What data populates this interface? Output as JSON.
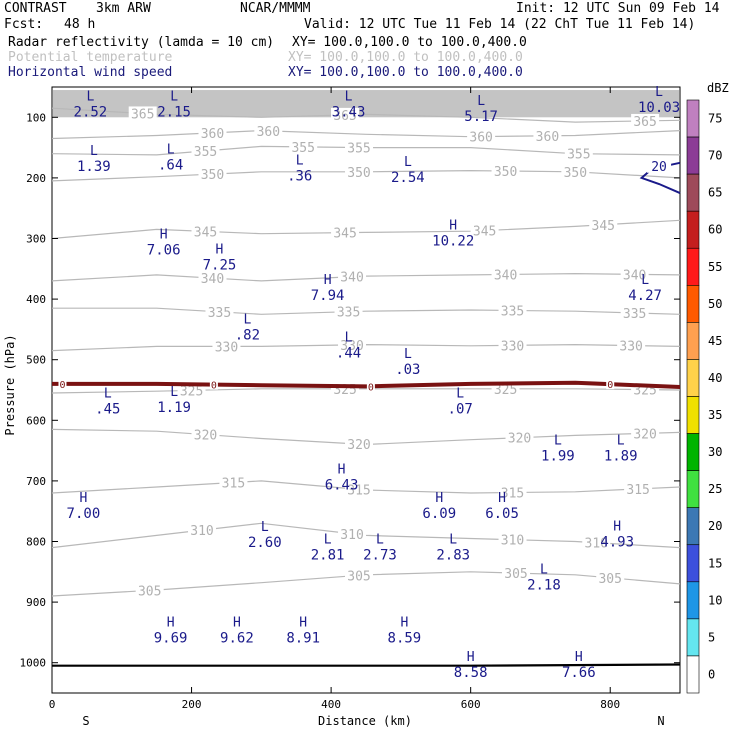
{
  "header": {
    "project": "CONTRAST",
    "model": "3km ARW",
    "org": "NCAR/MMMM",
    "init": "Init: 12 UTC Sun 09 Feb 14",
    "fcst_label": "Fcst:",
    "fcst_value": "48 h",
    "valid": "Valid: 12 UTC Tue 11 Feb 14 (22 ChT Tue 11 Feb 14)",
    "fields": [
      {
        "name": "Radar reflectivity (lamda = 10 cm)",
        "xy": "XY= 100.0,100.0 to 100.0,400.0",
        "color": "#000000"
      },
      {
        "name": "Potential temperature",
        "xy": "XY= 100.0,100.0 to 100.0,400.0",
        "color": "#c0c0c0"
      },
      {
        "name": "Horizontal wind speed",
        "xy": "XY= 100.0,100.0 to 100.0,400.0",
        "color": "#1a1a7a"
      }
    ]
  },
  "chart_data": {
    "type": "cross-section",
    "xlabel": "Distance (km)",
    "ylabel": "Pressure (hPa)",
    "xlim": [
      0,
      900
    ],
    "ylim": [
      1050,
      50
    ],
    "x_ticks": [
      "0",
      "200",
      "400",
      "600",
      "800"
    ],
    "x_tick_values": [
      0,
      200,
      400,
      600,
      800
    ],
    "y_ticks": [
      "100",
      "200",
      "300",
      "400",
      "500",
      "600",
      "700",
      "800",
      "900",
      "1000"
    ],
    "y_tick_values": [
      100,
      200,
      300,
      400,
      500,
      600,
      700,
      800,
      900,
      1000
    ],
    "end_labels": {
      "left": "S",
      "right": "N"
    },
    "theta_contours": [
      {
        "level": 365,
        "points": [
          [
            0,
            85
          ],
          [
            150,
            95
          ],
          [
            300,
            100
          ],
          [
            450,
            95
          ],
          [
            600,
            100
          ],
          [
            750,
            108
          ],
          [
            900,
            105
          ]
        ],
        "labels": [
          [
            130,
            365
          ],
          [
            420,
            365
          ],
          [
            850,
            365
          ]
        ]
      },
      {
        "level": 360,
        "points": [
          [
            0,
            135
          ],
          [
            150,
            130
          ],
          [
            300,
            122
          ],
          [
            450,
            128
          ],
          [
            600,
            132
          ],
          [
            750,
            130
          ],
          [
            900,
            122
          ]
        ],
        "labels": [
          [
            230,
            360
          ],
          [
            310,
            360
          ],
          [
            615,
            360
          ],
          [
            710,
            360
          ]
        ]
      },
      {
        "level": 355,
        "points": [
          [
            0,
            160
          ],
          [
            150,
            162
          ],
          [
            300,
            148
          ],
          [
            450,
            150
          ],
          [
            600,
            150
          ],
          [
            750,
            160
          ],
          [
            900,
            162
          ]
        ],
        "labels": [
          [
            220,
            355
          ],
          [
            360,
            355
          ],
          [
            440,
            355
          ],
          [
            755,
            355
          ]
        ]
      },
      {
        "level": 350,
        "points": [
          [
            0,
            205
          ],
          [
            150,
            198
          ],
          [
            300,
            190
          ],
          [
            450,
            190
          ],
          [
            600,
            188
          ],
          [
            750,
            190
          ],
          [
            900,
            200
          ]
        ],
        "labels": [
          [
            230,
            350
          ],
          [
            440,
            350
          ],
          [
            650,
            350
          ],
          [
            750,
            350
          ]
        ]
      },
      {
        "level": 345,
        "points": [
          [
            0,
            300
          ],
          [
            150,
            285
          ],
          [
            300,
            292
          ],
          [
            450,
            290
          ],
          [
            600,
            288
          ],
          [
            750,
            280
          ],
          [
            900,
            270
          ]
        ],
        "labels": [
          [
            220,
            345
          ],
          [
            420,
            345
          ],
          [
            620,
            345
          ],
          [
            790,
            345
          ]
        ]
      },
      {
        "level": 340,
        "points": [
          [
            0,
            370
          ],
          [
            150,
            360
          ],
          [
            300,
            370
          ],
          [
            450,
            362
          ],
          [
            600,
            360
          ],
          [
            750,
            358
          ],
          [
            900,
            360
          ]
        ],
        "labels": [
          [
            230,
            340
          ],
          [
            430,
            340
          ],
          [
            650,
            340
          ],
          [
            835,
            340
          ]
        ]
      },
      {
        "level": 335,
        "points": [
          [
            0,
            415
          ],
          [
            150,
            415
          ],
          [
            300,
            425
          ],
          [
            450,
            420
          ],
          [
            600,
            418
          ],
          [
            750,
            420
          ],
          [
            900,
            425
          ]
        ],
        "labels": [
          [
            240,
            335
          ],
          [
            425,
            335
          ],
          [
            660,
            335
          ],
          [
            835,
            335
          ]
        ]
      },
      {
        "level": 330,
        "points": [
          [
            0,
            485
          ],
          [
            150,
            478
          ],
          [
            300,
            478
          ],
          [
            450,
            475
          ],
          [
            600,
            477
          ],
          [
            750,
            475
          ],
          [
            900,
            478
          ]
        ],
        "labels": [
          [
            250,
            330
          ],
          [
            430,
            330
          ],
          [
            660,
            330
          ],
          [
            830,
            330
          ]
        ]
      },
      {
        "level": 325,
        "points": [
          [
            0,
            555
          ],
          [
            150,
            552
          ],
          [
            300,
            548
          ],
          [
            450,
            548
          ],
          [
            600,
            548
          ],
          [
            750,
            548
          ],
          [
            900,
            550
          ]
        ],
        "labels": [
          [
            200,
            325
          ],
          [
            420,
            325
          ],
          [
            650,
            325
          ],
          [
            850,
            325
          ]
        ]
      },
      {
        "level": 320,
        "points": [
          [
            0,
            615
          ],
          [
            150,
            618
          ],
          [
            300,
            630
          ],
          [
            450,
            640
          ],
          [
            600,
            632
          ],
          [
            750,
            625
          ],
          [
            900,
            620
          ]
        ],
        "labels": [
          [
            220,
            320
          ],
          [
            440,
            320
          ],
          [
            670,
            320
          ],
          [
            850,
            320
          ]
        ]
      },
      {
        "level": 315,
        "points": [
          [
            0,
            720
          ],
          [
            150,
            710
          ],
          [
            300,
            700
          ],
          [
            450,
            715
          ],
          [
            600,
            720
          ],
          [
            750,
            718
          ],
          [
            900,
            710
          ]
        ],
        "labels": [
          [
            260,
            315
          ],
          [
            440,
            315
          ],
          [
            660,
            315
          ],
          [
            840,
            315
          ]
        ]
      },
      {
        "level": 310,
        "points": [
          [
            0,
            810
          ],
          [
            150,
            790
          ],
          [
            300,
            770
          ],
          [
            450,
            790
          ],
          [
            600,
            795
          ],
          [
            750,
            800
          ],
          [
            900,
            810
          ]
        ],
        "labels": [
          [
            215,
            310
          ],
          [
            430,
            310
          ],
          [
            660,
            310
          ],
          [
            780,
            310
          ]
        ]
      },
      {
        "level": 305,
        "points": [
          [
            0,
            890
          ],
          [
            150,
            880
          ],
          [
            300,
            868
          ],
          [
            450,
            855
          ],
          [
            600,
            850
          ],
          [
            750,
            855
          ],
          [
            900,
            870
          ]
        ],
        "labels": [
          [
            140,
            305
          ],
          [
            440,
            305
          ],
          [
            665,
            305
          ],
          [
            800,
            305
          ]
        ]
      }
    ],
    "freezing_line": {
      "level": "0",
      "points": [
        [
          0,
          540
        ],
        [
          150,
          540
        ],
        [
          300,
          542
        ],
        [
          450,
          544
        ],
        [
          600,
          540
        ],
        [
          750,
          538
        ],
        [
          900,
          545
        ]
      ],
      "labels": [
        [
          15,
          "0"
        ],
        [
          232,
          "0"
        ],
        [
          457,
          "0"
        ],
        [
          800,
          "0"
        ]
      ]
    },
    "surface_line": [
      [
        0,
        1005
      ],
      [
        300,
        1005
      ],
      [
        600,
        1005
      ],
      [
        900,
        1003
      ]
    ],
    "wind_contour": {
      "level": "20",
      "points": [
        [
          900,
          175
        ],
        [
          860,
          185
        ],
        [
          845,
          200
        ],
        [
          870,
          210
        ],
        [
          900,
          225
        ]
      ]
    },
    "extrema": [
      {
        "type": "L",
        "value": "2.52",
        "x": 55,
        "p": 72
      },
      {
        "type": "L",
        "value": "2.15",
        "x": 175,
        "p": 72
      },
      {
        "type": "L",
        "value": "3.43",
        "x": 425,
        "p": 72
      },
      {
        "type": "L",
        "value": "5.17",
        "x": 615,
        "p": 80
      },
      {
        "type": "L",
        "value": "10.03",
        "x": 870,
        "p": 65
      },
      {
        "type": "L",
        "value": "1.39",
        "x": 60,
        "p": 162
      },
      {
        "type": "L",
        "value": ".64",
        "x": 170,
        "p": 160
      },
      {
        "type": "L",
        "value": ".36",
        "x": 355,
        "p": 178
      },
      {
        "type": "L",
        "value": "2.54",
        "x": 510,
        "p": 180
      },
      {
        "type": "H",
        "value": "7.06",
        "x": 160,
        "p": 300
      },
      {
        "type": "H",
        "value": "10.22",
        "x": 575,
        "p": 285
      },
      {
        "type": "H",
        "value": "7.25",
        "x": 240,
        "p": 325
      },
      {
        "type": "H",
        "value": "7.94",
        "x": 395,
        "p": 375
      },
      {
        "type": "L",
        "value": "4.27",
        "x": 850,
        "p": 375
      },
      {
        "type": "L",
        "value": ".82",
        "x": 280,
        "p": 440
      },
      {
        "type": "L",
        "value": ".44",
        "x": 425,
        "p": 470
      },
      {
        "type": "L",
        "value": ".03",
        "x": 510,
        "p": 497
      },
      {
        "type": "L",
        "value": ".45",
        "x": 80,
        "p": 562
      },
      {
        "type": "L",
        "value": "1.19",
        "x": 175,
        "p": 560
      },
      {
        "type": "L",
        "value": ".07",
        "x": 585,
        "p": 562
      },
      {
        "type": "L",
        "value": "1.99",
        "x": 725,
        "p": 640
      },
      {
        "type": "L",
        "value": "1.89",
        "x": 815,
        "p": 640
      },
      {
        "type": "H",
        "value": "6.43",
        "x": 415,
        "p": 688
      },
      {
        "type": "H",
        "value": "7.00",
        "x": 45,
        "p": 735
      },
      {
        "type": "H",
        "value": "6.09",
        "x": 555,
        "p": 735
      },
      {
        "type": "H",
        "value": "6.05",
        "x": 645,
        "p": 735
      },
      {
        "type": "H",
        "value": "4.93",
        "x": 810,
        "p": 782
      },
      {
        "type": "L",
        "value": "2.60",
        "x": 305,
        "p": 783
      },
      {
        "type": "L",
        "value": "2.81",
        "x": 395,
        "p": 803
      },
      {
        "type": "L",
        "value": "2.73",
        "x": 470,
        "p": 803
      },
      {
        "type": "L",
        "value": "2.83",
        "x": 575,
        "p": 803
      },
      {
        "type": "L",
        "value": "2.18",
        "x": 705,
        "p": 853
      },
      {
        "type": "H",
        "value": "9.69",
        "x": 170,
        "p": 940
      },
      {
        "type": "H",
        "value": "9.62",
        "x": 265,
        "p": 940
      },
      {
        "type": "H",
        "value": "8.91",
        "x": 360,
        "p": 940
      },
      {
        "type": "H",
        "value": "8.59",
        "x": 505,
        "p": 940
      },
      {
        "type": "H",
        "value": "8.58",
        "x": 600,
        "p": 997
      },
      {
        "type": "H",
        "value": "7.66",
        "x": 755,
        "p": 997
      }
    ]
  },
  "colorbar": {
    "unit": "dBZ",
    "levels": [
      "75",
      "70",
      "65",
      "60",
      "55",
      "50",
      "45",
      "40",
      "35",
      "30",
      "25",
      "20",
      "15",
      "10",
      "5",
      "0"
    ],
    "colors": [
      "#c080c0",
      "#8c3c96",
      "#9e4a5a",
      "#c41e1e",
      "#ff1a1a",
      "#ff5a00",
      "#ffa050",
      "#ffd24a",
      "#f0e000",
      "#00b400",
      "#40e040",
      "#3c78b4",
      "#3c50dc",
      "#1e96e6",
      "#64e6f0",
      "#ffffff"
    ]
  }
}
